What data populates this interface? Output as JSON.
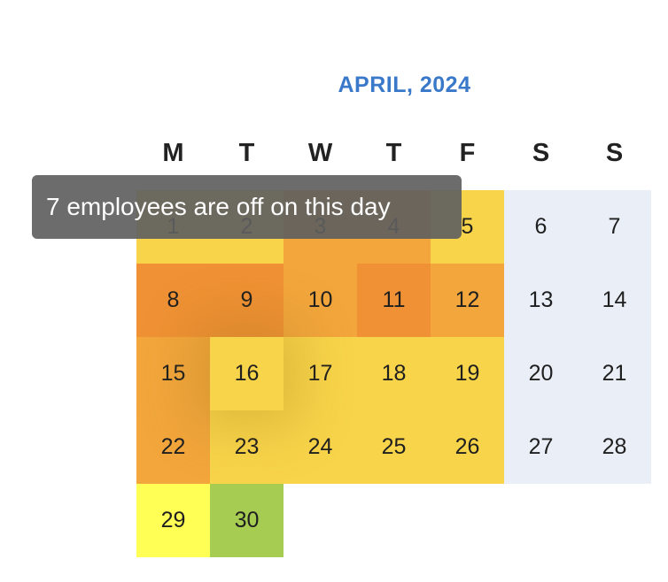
{
  "calendar": {
    "title": "APRIL, 2024",
    "weekdays": [
      "M",
      "T",
      "W",
      "T",
      "F",
      "S",
      "S"
    ],
    "colors": {
      "weekend": "#e9eef7",
      "level_low_green": "#a6cc52",
      "level_lightyellow": "#ffff55",
      "level_yellow": "#f8d44a",
      "level_orange": "#f2a63c",
      "level_darkorange": "#ef9134"
    },
    "weeks": [
      [
        {
          "day": "1",
          "color": "#f8d44a"
        },
        {
          "day": "2",
          "color": "#f8d44a"
        },
        {
          "day": "3",
          "color": "#f2a63c"
        },
        {
          "day": "4",
          "color": "#f2a63c"
        },
        {
          "day": "5",
          "color": "#f8d44a"
        },
        {
          "day": "6",
          "color": "#e9eef7"
        },
        {
          "day": "7",
          "color": "#e9eef7"
        }
      ],
      [
        {
          "day": "8",
          "color": "#ef9134"
        },
        {
          "day": "9",
          "color": "#ef9134"
        },
        {
          "day": "10",
          "color": "#f2a63c"
        },
        {
          "day": "11",
          "color": "#ef9134"
        },
        {
          "day": "12",
          "color": "#f2a63c"
        },
        {
          "day": "13",
          "color": "#e9eef7"
        },
        {
          "day": "14",
          "color": "#e9eef7"
        }
      ],
      [
        {
          "day": "15",
          "color": "#f2a63c"
        },
        {
          "day": "16",
          "color": "#f8d44a"
        },
        {
          "day": "17",
          "color": "#f8d44a"
        },
        {
          "day": "18",
          "color": "#f8d44a"
        },
        {
          "day": "19",
          "color": "#f8d44a"
        },
        {
          "day": "20",
          "color": "#e9eef7"
        },
        {
          "day": "21",
          "color": "#e9eef7"
        }
      ],
      [
        {
          "day": "22",
          "color": "#f2a63c"
        },
        {
          "day": "23",
          "color": "#f8d44a"
        },
        {
          "day": "24",
          "color": "#f8d44a"
        },
        {
          "day": "25",
          "color": "#f8d44a"
        },
        {
          "day": "26",
          "color": "#f8d44a"
        },
        {
          "day": "27",
          "color": "#e9eef7"
        },
        {
          "day": "28",
          "color": "#e9eef7"
        }
      ],
      [
        {
          "day": "29",
          "color": "#ffff55"
        },
        {
          "day": "30",
          "color": "#a6cc52"
        }
      ]
    ]
  },
  "tooltip": {
    "text": "7 employees are off on this day"
  }
}
